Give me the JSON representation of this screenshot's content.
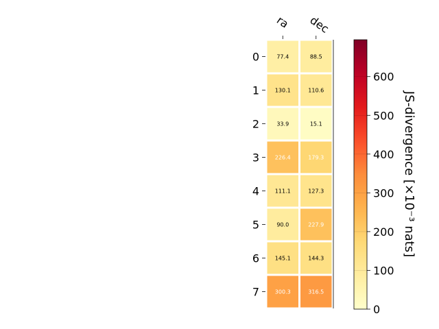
{
  "chart_data": {
    "type": "heatmap",
    "columns": [
      "ra",
      "dec"
    ],
    "rows": [
      "0",
      "1",
      "2",
      "3",
      "4",
      "5",
      "6",
      "7"
    ],
    "values": [
      [
        77.4,
        88.5
      ],
      [
        130.1,
        110.6
      ],
      [
        33.9,
        15.1
      ],
      [
        226.4,
        179.3
      ],
      [
        111.1,
        127.3
      ],
      [
        90.0,
        227.9
      ],
      [
        145.1,
        144.3
      ],
      [
        300.3,
        316.5
      ]
    ],
    "cell_labels": [
      [
        "77.4",
        "88.5"
      ],
      [
        "130.1",
        "110.6"
      ],
      [
        "33.9",
        "15.1"
      ],
      [
        "226.4",
        "179.3"
      ],
      [
        "111.1",
        "127.3"
      ],
      [
        "90.0",
        "227.9"
      ],
      [
        "145.1",
        "144.3"
      ],
      [
        "300.3",
        "316.5"
      ]
    ],
    "colorbar": {
      "label": "JS-divergence [×10⁻³ nats]",
      "range": [
        0,
        695
      ],
      "ticks": [
        "0",
        "100",
        "200",
        "300",
        "400",
        "500",
        "600"
      ],
      "colormap": "YlOrRd"
    },
    "colors": {
      "low": "#ffffcc",
      "high": "#800026",
      "grid": "#ffffff"
    }
  }
}
